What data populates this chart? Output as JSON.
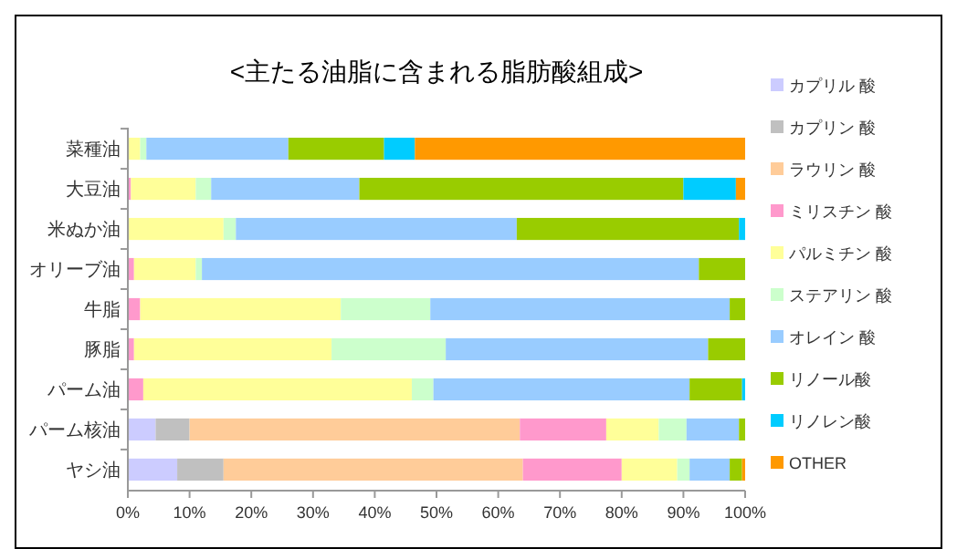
{
  "chart_data": {
    "type": "bar",
    "orientation": "horizontal",
    "stacked": true,
    "title": "<主たる油脂に含まれる脂肪酸組成>",
    "categories": [
      "菜種油",
      "大豆油",
      "米ぬか油",
      "オリーブ油",
      "牛脂",
      "豚脂",
      "パーム油",
      "パーム核油",
      "ヤシ油"
    ],
    "series": [
      {
        "name": "カプリル 酸",
        "color": "#ccccff",
        "values": [
          0,
          0,
          0,
          0,
          0,
          0,
          0,
          4.5,
          8
        ]
      },
      {
        "name": "カプリン 酸",
        "color": "#c0c0c0",
        "values": [
          0,
          0,
          0,
          0,
          0,
          0,
          0,
          5.5,
          7.5
        ]
      },
      {
        "name": "ラウリン 酸",
        "color": "#ffcc99",
        "values": [
          0,
          0,
          0,
          0,
          0,
          0,
          0,
          53.5,
          48.5
        ]
      },
      {
        "name": "ミリスチン 酸",
        "color": "#ff99cc",
        "values": [
          0,
          0.5,
          0,
          1,
          2,
          1,
          2.5,
          14,
          16
        ]
      },
      {
        "name": "パルミチン 酸",
        "color": "#ffff99",
        "values": [
          2,
          10.5,
          15.5,
          10,
          32.5,
          32,
          43.5,
          8.5,
          9
        ]
      },
      {
        "name": "ステアリン 酸",
        "color": "#ccffcc",
        "values": [
          1,
          2.5,
          2,
          1,
          14.5,
          18.5,
          3.5,
          4.5,
          2
        ]
      },
      {
        "name": "オレイン 酸",
        "color": "#99ccff",
        "values": [
          23,
          24,
          45.5,
          80.5,
          48.5,
          42.5,
          41.5,
          8.5,
          6.5
        ]
      },
      {
        "name": "リノール酸",
        "color": "#99cc00",
        "values": [
          15.5,
          52.5,
          36,
          7.5,
          2.5,
          6,
          8.5,
          1,
          2
        ]
      },
      {
        "name": "リノレン酸",
        "color": "#00ccff",
        "values": [
          5,
          8.5,
          1,
          0,
          0,
          0,
          0.5,
          0,
          0
        ]
      },
      {
        "name": "OTHER",
        "color": "#ff9900",
        "values": [
          53.5,
          1.5,
          0,
          0,
          0,
          0,
          0,
          0,
          0.5
        ]
      }
    ],
    "xlim": [
      0,
      100
    ],
    "xticks": [
      {
        "value": 0,
        "label": "0%"
      },
      {
        "value": 10,
        "label": "10%"
      },
      {
        "value": 20,
        "label": "20%"
      },
      {
        "value": 30,
        "label": "30%"
      },
      {
        "value": 40,
        "label": "40%"
      },
      {
        "value": 50,
        "label": "50%"
      },
      {
        "value": 60,
        "label": "60%"
      },
      {
        "value": 70,
        "label": "70%"
      },
      {
        "value": 80,
        "label": "80%"
      },
      {
        "value": 90,
        "label": "90%"
      },
      {
        "value": 100,
        "label": "100%"
      }
    ],
    "grid": false,
    "legend": "right"
  }
}
